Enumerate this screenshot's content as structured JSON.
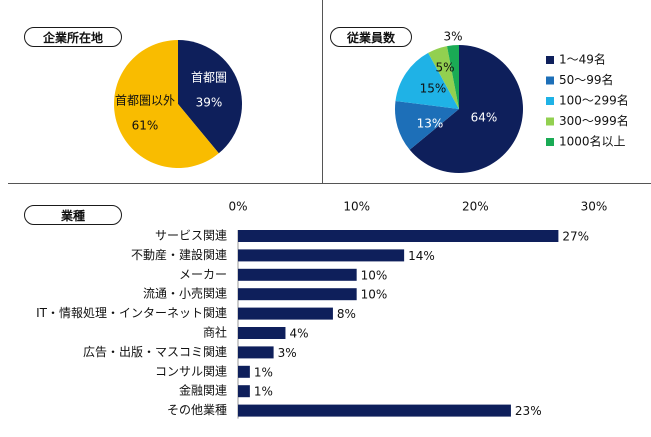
{
  "colors": {
    "navy": "#0e1f5b",
    "gold": "#f9bc00",
    "blue": "#1d6fb8",
    "cyan": "#1fb2e6",
    "lime": "#92d050",
    "green": "#1aab55"
  },
  "chart_data": [
    {
      "type": "pie",
      "title": "企業所在地",
      "slices": [
        {
          "label": "首都圏",
          "value": 39,
          "value_label": "39%",
          "color": "#0e1f5b"
        },
        {
          "label": "首都圏以外",
          "value": 61,
          "value_label": "61%",
          "color": "#f9bc00"
        }
      ]
    },
    {
      "type": "pie",
      "title": "従業員数",
      "slices": [
        {
          "label": "1〜49名",
          "value": 64,
          "value_label": "64%",
          "color": "#0e1f5b"
        },
        {
          "label": "50〜99名",
          "value": 13,
          "value_label": "13%",
          "color": "#1d6fb8"
        },
        {
          "label": "100〜299名",
          "value": 15,
          "value_label": "15%",
          "color": "#1fb2e6"
        },
        {
          "label": "300〜999名",
          "value": 5,
          "value_label": "5%",
          "color": "#92d050"
        },
        {
          "label": "1000名以上",
          "value": 3,
          "value_label": "3%",
          "color": "#1aab55"
        }
      ],
      "legend_position": "right"
    },
    {
      "type": "bar",
      "orientation": "horizontal",
      "title": "業種",
      "categories": [
        "サービス関連",
        "不動産・建設関連",
        "メーカー",
        "流通・小売関連",
        "IT・情報処理・インターネット関連",
        "商社",
        "広告・出版・マスコミ関連",
        "コンサル関連",
        "金融関連",
        "その他業種"
      ],
      "values": [
        27,
        14,
        10,
        10,
        8,
        4,
        3,
        1,
        1,
        23
      ],
      "value_labels": [
        "27%",
        "14%",
        "10%",
        "10%",
        "8%",
        "4%",
        "3%",
        "1%",
        "1%",
        "23%"
      ],
      "xlim": [
        0,
        30
      ],
      "xticks": [
        "0%",
        "10%",
        "20%",
        "30%"
      ],
      "axis_position": "top",
      "color": "#0e1f5b"
    }
  ]
}
